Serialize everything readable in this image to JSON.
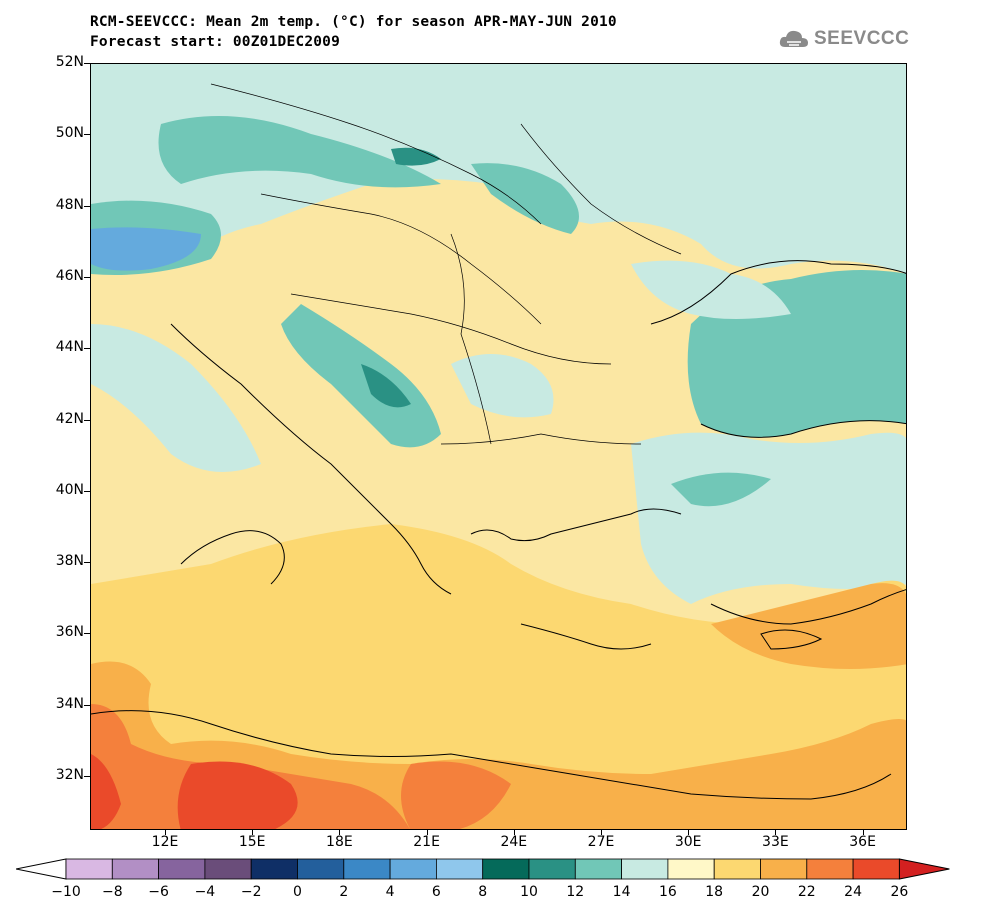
{
  "title": {
    "line1": "RCM-SEEVCCC: Mean 2m temp. (°C) for season APR-MAY-JUN 2010",
    "line2": "Forecast start: 00Z01DEC2009"
  },
  "logo": {
    "text": "SEEVCCC",
    "icon": "cloud-logo-icon"
  },
  "map": {
    "lat_labels": [
      "52N",
      "50N",
      "48N",
      "46N",
      "44N",
      "42N",
      "40N",
      "38N",
      "36N",
      "34N",
      "32N"
    ],
    "lon_labels": [
      "12E",
      "15E",
      "18E",
      "21E",
      "24E",
      "27E",
      "30E",
      "33E",
      "36E"
    ],
    "lat_range": [
      30.5,
      52
    ],
    "lon_range": [
      9,
      37
    ]
  },
  "colorbar": {
    "labels": [
      "-10",
      "-8",
      "-6",
      "-4",
      "-2",
      "0",
      "2",
      "4",
      "6",
      "8",
      "10",
      "12",
      "14",
      "16",
      "18",
      "20",
      "22",
      "24",
      "26"
    ],
    "colors": [
      "#f3e6f5",
      "#d9b8e3",
      "#b28fc5",
      "#86649e",
      "#6a4d7a",
      "#0f2f66",
      "#235f9c",
      "#3b88c6",
      "#64aadd",
      "#8fc7ec",
      "#056a5a",
      "#2a9184",
      "#71c7b7",
      "#c8eae2",
      "#fff8c8",
      "#fcd871",
      "#f8b04a",
      "#f4803c",
      "#ea4a2a",
      "#d32020"
    ],
    "colors_note": ""
  }
}
